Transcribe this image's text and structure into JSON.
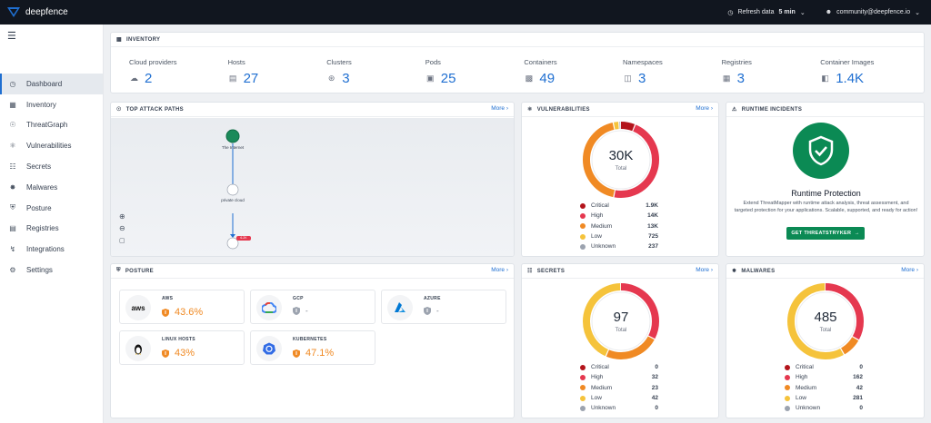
{
  "app": {
    "name": "deepfence"
  },
  "topbar": {
    "refresh_label": "Refresh data",
    "refresh_value": "5 min",
    "user": "community@deepfence.io"
  },
  "sidebar": {
    "items": [
      {
        "label": "Dashboard",
        "icon": "gauge-icon",
        "active": true
      },
      {
        "label": "Inventory",
        "icon": "inventory-icon"
      },
      {
        "label": "ThreatGraph",
        "icon": "graph-icon"
      },
      {
        "label": "Vulnerabilities",
        "icon": "bug-icon"
      },
      {
        "label": "Secrets",
        "icon": "lock-icon"
      },
      {
        "label": "Malwares",
        "icon": "virus-icon"
      },
      {
        "label": "Posture",
        "icon": "shield-icon"
      },
      {
        "label": "Registries",
        "icon": "registry-icon"
      },
      {
        "label": "Integrations",
        "icon": "plug-icon"
      },
      {
        "label": "Settings",
        "icon": "gear-icon"
      }
    ]
  },
  "inventory": {
    "title": "INVENTORY",
    "items": [
      {
        "label": "Cloud providers",
        "value": "2",
        "icon": "cloud-icon"
      },
      {
        "label": "Hosts",
        "value": "27",
        "icon": "host-icon"
      },
      {
        "label": "Clusters",
        "value": "3",
        "icon": "cluster-icon"
      },
      {
        "label": "Pods",
        "value": "25",
        "icon": "pod-icon"
      },
      {
        "label": "Containers",
        "value": "49",
        "icon": "container-icon"
      },
      {
        "label": "Namespaces",
        "value": "3",
        "icon": "namespace-icon"
      },
      {
        "label": "Registries",
        "value": "3",
        "icon": "registry-icon"
      },
      {
        "label": "Container Images",
        "value": "1.4K",
        "icon": "image-icon"
      }
    ]
  },
  "attack_paths": {
    "title": "TOP ATTACK PATHS",
    "more": "More",
    "node_internet": "The Internet",
    "node_cloud": "private cloud",
    "badge": "6.2K"
  },
  "vulnerabilities": {
    "title": "VULNERABILITIES",
    "more": "More",
    "total": "30K",
    "total_label": "Total",
    "legend": [
      {
        "label": "Critical",
        "value": "1.9K",
        "color": "#b3141b"
      },
      {
        "label": "High",
        "value": "14K",
        "color": "#e5384f"
      },
      {
        "label": "Medium",
        "value": "13K",
        "color": "#f08a24"
      },
      {
        "label": "Low",
        "value": "725",
        "color": "#f5c33b"
      },
      {
        "label": "Unknown",
        "value": "237",
        "color": "#9ca3af"
      }
    ]
  },
  "runtime": {
    "title": "RUNTIME INCIDENTS",
    "heading": "Runtime Protection",
    "text": "Extend ThreatMapper with runtime attack analysis, threat assessment, and targeted protection for your applications. Scalable, supported, and ready for action!",
    "button": "GET THREATSTRYKER"
  },
  "posture": {
    "title": "POSTURE",
    "more": "More",
    "tiles": [
      {
        "logo": "aws",
        "name": "AWS",
        "value": "43.6%"
      },
      {
        "logo": "gcp",
        "name": "GCP",
        "value": "-"
      },
      {
        "logo": "azure",
        "name": "AZURE",
        "value": "-"
      },
      {
        "logo": "linux",
        "name": "LINUX HOSTS",
        "value": "43%"
      },
      {
        "logo": "k8s",
        "name": "KUBERNETES",
        "value": "47.1%"
      }
    ]
  },
  "secrets": {
    "title": "SECRETS",
    "more": "More",
    "total": "97",
    "total_label": "Total",
    "legend": [
      {
        "label": "Critical",
        "value": "0",
        "color": "#b3141b"
      },
      {
        "label": "High",
        "value": "32",
        "color": "#e5384f"
      },
      {
        "label": "Medium",
        "value": "23",
        "color": "#f08a24"
      },
      {
        "label": "Low",
        "value": "42",
        "color": "#f5c33b"
      },
      {
        "label": "Unknown",
        "value": "0",
        "color": "#9ca3af"
      }
    ]
  },
  "malwares": {
    "title": "MALWARES",
    "more": "More",
    "total": "485",
    "total_label": "Total",
    "legend": [
      {
        "label": "Critical",
        "value": "0",
        "color": "#b3141b"
      },
      {
        "label": "High",
        "value": "162",
        "color": "#e5384f"
      },
      {
        "label": "Medium",
        "value": "42",
        "color": "#f08a24"
      },
      {
        "label": "Low",
        "value": "281",
        "color": "#f5c33b"
      },
      {
        "label": "Unknown",
        "value": "0",
        "color": "#9ca3af"
      }
    ]
  }
}
